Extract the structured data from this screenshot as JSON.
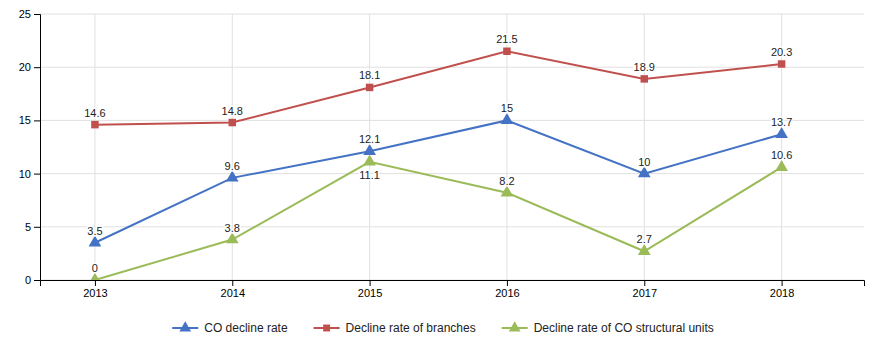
{
  "chart_data": {
    "type": "line",
    "x": [
      2013,
      2014,
      2015,
      2016,
      2017,
      2018
    ],
    "xlim": [
      2012.6,
      2018.6
    ],
    "xticks": [
      2013,
      2014,
      2015,
      2016,
      2017,
      2018
    ],
    "ylim": [
      0,
      25
    ],
    "yticks": [
      0,
      5,
      10,
      15,
      20,
      25
    ],
    "grid": true,
    "legend": "bottom",
    "data_labels": true,
    "series": [
      {
        "name": "CO decline rate",
        "color": "#4472c4",
        "marker": "triangle-up",
        "values": [
          3.5,
          9.6,
          12.1,
          15.0,
          10.0,
          13.7
        ]
      },
      {
        "name": "Decline rate of branches",
        "color": "#c0504d",
        "marker": "square",
        "values": [
          14.6,
          14.8,
          18.1,
          21.5,
          18.9,
          20.3
        ]
      },
      {
        "name": "Decline rate of CO structural units",
        "color": "#9bbb59",
        "marker": "triangle-up",
        "values": [
          0.0,
          3.8,
          11.1,
          8.2,
          2.7,
          10.6
        ]
      }
    ]
  }
}
